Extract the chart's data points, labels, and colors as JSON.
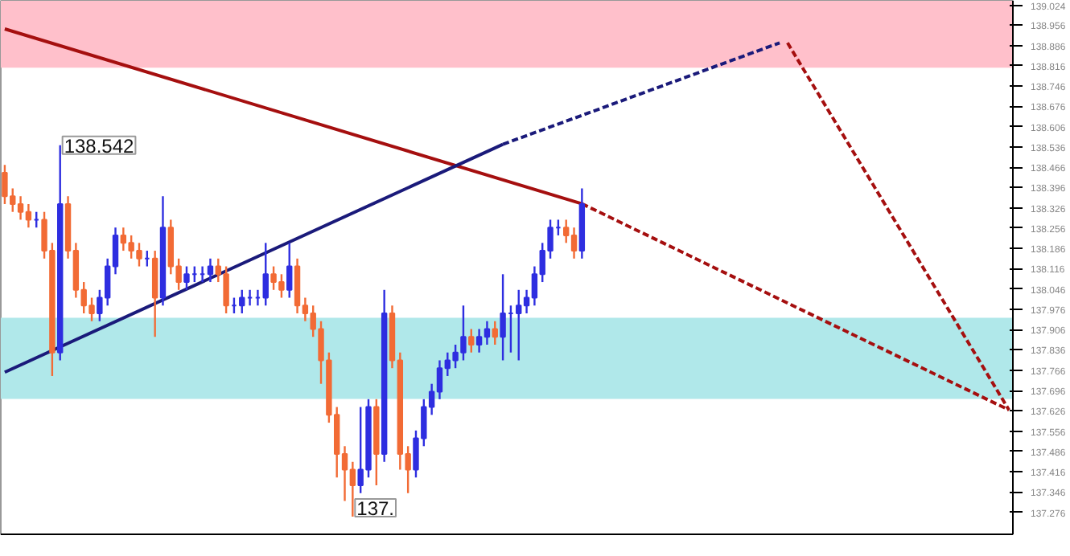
{
  "chart_data": {
    "type": "candlestick",
    "categories": [
      null,
      null,
      null,
      null,
      null,
      null,
      null,
      null,
      null,
      null,
      null,
      null,
      null,
      null,
      null,
      null,
      null,
      null,
      null,
      null,
      null,
      null,
      null,
      null,
      null,
      null,
      null,
      null,
      null,
      null,
      null,
      null,
      null,
      null,
      null,
      null,
      null,
      null,
      null,
      null,
      null,
      null,
      null,
      null,
      null,
      null,
      null,
      null,
      null,
      null,
      null,
      null,
      null,
      null,
      null,
      null,
      null,
      null,
      null,
      null,
      null,
      null,
      null,
      null,
      null,
      null,
      null,
      null,
      null,
      null,
      null,
      null,
      null,
      null,
      null,
      null,
      null,
      null,
      null,
      null,
      null,
      null,
      null,
      null,
      null,
      null,
      null,
      null,
      null,
      null,
      null,
      null,
      null,
      null,
      null,
      null,
      null,
      null,
      null,
      null,
      null,
      null,
      null,
      null,
      null,
      null,
      null,
      null,
      null,
      null,
      null,
      null,
      null,
      null,
      null,
      null,
      null,
      null,
      null,
      null,
      null,
      null,
      null,
      null,
      null,
      null,
      null,
      null
    ],
    "ohlc": [
      [
        138.447,
        138.474,
        138.339,
        138.366
      ],
      [
        138.366,
        138.393,
        138.312,
        138.339
      ],
      [
        138.339,
        138.366,
        138.285,
        138.312
      ],
      [
        138.312,
        138.339,
        138.258,
        138.285
      ],
      [
        138.285,
        138.312,
        138.258,
        138.285
      ],
      [
        138.285,
        138.312,
        138.151,
        138.178
      ],
      [
        138.178,
        138.205,
        137.746,
        137.827
      ],
      [
        137.827,
        138.542,
        137.8,
        138.339
      ],
      [
        138.339,
        138.366,
        138.151,
        138.178
      ],
      [
        138.178,
        138.205,
        138.016,
        138.043
      ],
      [
        138.043,
        138.07,
        137.962,
        137.989
      ],
      [
        137.989,
        138.016,
        137.935,
        137.962
      ],
      [
        137.962,
        138.043,
        137.935,
        138.016
      ],
      [
        138.016,
        138.151,
        137.989,
        138.124
      ],
      [
        138.124,
        138.258,
        138.097,
        138.231
      ],
      [
        138.231,
        138.258,
        138.178,
        138.205
      ],
      [
        138.205,
        138.231,
        138.151,
        138.178
      ],
      [
        138.178,
        138.205,
        138.124,
        138.151
      ],
      [
        138.151,
        138.178,
        138.124,
        138.151
      ],
      [
        138.151,
        138.178,
        137.881,
        138.016
      ],
      [
        138.016,
        138.366,
        137.989,
        138.258
      ],
      [
        138.258,
        138.285,
        138.097,
        138.124
      ],
      [
        138.124,
        138.151,
        138.043,
        138.07
      ],
      [
        138.07,
        138.124,
        138.043,
        138.097
      ],
      [
        138.097,
        138.124,
        138.07,
        138.097
      ],
      [
        138.097,
        138.124,
        138.07,
        138.097
      ],
      [
        138.097,
        138.151,
        138.07,
        138.124
      ],
      [
        138.124,
        138.151,
        138.07,
        138.097
      ],
      [
        138.097,
        138.124,
        137.962,
        137.989
      ],
      [
        137.989,
        138.016,
        137.962,
        137.989
      ],
      [
        137.989,
        138.043,
        137.962,
        138.016
      ],
      [
        138.016,
        138.043,
        137.989,
        138.016
      ],
      [
        138.016,
        138.043,
        137.989,
        138.016
      ],
      [
        138.016,
        138.205,
        137.989,
        138.097
      ],
      [
        138.097,
        138.124,
        138.043,
        138.07
      ],
      [
        138.07,
        138.097,
        138.016,
        138.043
      ],
      [
        138.043,
        138.205,
        138.016,
        138.124
      ],
      [
        138.124,
        138.151,
        137.962,
        137.989
      ],
      [
        137.989,
        138.016,
        137.935,
        137.962
      ],
      [
        137.962,
        137.989,
        137.881,
        137.908
      ],
      [
        137.908,
        137.935,
        137.719,
        137.8
      ],
      [
        137.8,
        137.827,
        137.585,
        137.612
      ],
      [
        137.612,
        137.639,
        137.396,
        137.477
      ],
      [
        137.477,
        137.504,
        137.315,
        137.423
      ],
      [
        137.423,
        137.45,
        137.261,
        137.369
      ],
      [
        137.369,
        137.639,
        137.342,
        137.423
      ],
      [
        137.423,
        137.666,
        137.396,
        137.639
      ],
      [
        137.639,
        137.666,
        137.369,
        137.477
      ],
      [
        137.477,
        138.043,
        137.45,
        137.962
      ],
      [
        137.962,
        137.989,
        137.773,
        137.8
      ],
      [
        137.8,
        137.827,
        137.423,
        137.477
      ],
      [
        137.477,
        137.504,
        137.342,
        137.423
      ],
      [
        137.423,
        137.558,
        137.396,
        137.531
      ],
      [
        137.531,
        137.666,
        137.504,
        137.639
      ],
      [
        137.639,
        137.719,
        137.612,
        137.692
      ],
      [
        137.692,
        137.8,
        137.666,
        137.773
      ],
      [
        137.773,
        137.827,
        137.746,
        137.8
      ],
      [
        137.8,
        137.854,
        137.773,
        137.827
      ],
      [
        137.827,
        137.989,
        137.8,
        137.881
      ],
      [
        137.881,
        137.908,
        137.827,
        137.854
      ],
      [
        137.854,
        137.908,
        137.827,
        137.881
      ],
      [
        137.881,
        137.935,
        137.854,
        137.908
      ],
      [
        137.908,
        137.935,
        137.854,
        137.881
      ],
      [
        137.881,
        138.097,
        137.8,
        137.962
      ],
      [
        137.962,
        137.989,
        137.827,
        137.962
      ],
      [
        137.962,
        138.043,
        137.8,
        137.989
      ],
      [
        137.989,
        138.043,
        137.962,
        138.016
      ],
      [
        138.016,
        138.124,
        137.989,
        138.097
      ],
      [
        138.097,
        138.205,
        138.07,
        138.178
      ],
      [
        138.178,
        138.285,
        138.151,
        138.258
      ],
      [
        138.258,
        138.285,
        138.231,
        138.258
      ],
      [
        138.258,
        138.285,
        138.205,
        138.231
      ],
      [
        138.231,
        138.258,
        138.151,
        138.178
      ],
      [
        138.178,
        138.393,
        138.151,
        138.339
      ],
      null,
      null,
      null,
      null,
      null,
      null,
      null,
      null,
      null,
      null,
      null,
      null,
      null,
      null,
      null,
      null,
      null,
      null,
      null,
      null,
      null,
      null,
      null,
      null,
      null,
      null,
      null,
      null,
      null,
      null,
      null,
      null,
      null,
      null,
      null,
      null,
      null,
      null,
      null,
      null,
      null,
      null,
      null,
      null,
      null,
      null,
      null,
      null,
      null,
      null,
      null,
      null,
      null,
      null
    ],
    "colors": [
      "#f26b35",
      "#f26b35",
      "#f26b35",
      "#f26b35",
      "#2e2ee0",
      "#f26b35",
      "#f26b35",
      "#2e2ee0",
      "#f26b35",
      "#f26b35",
      "#f26b35",
      "#f26b35",
      "#2e2ee0",
      "#2e2ee0",
      "#2e2ee0",
      "#f26b35",
      "#f26b35",
      "#f26b35",
      "#2e2ee0",
      "#f26b35",
      "#2e2ee0",
      "#f26b35",
      "#f26b35",
      "#2e2ee0",
      "#2e2ee0",
      "#2e2ee0",
      "#2e2ee0",
      "#f26b35",
      "#f26b35",
      "#2e2ee0",
      "#2e2ee0",
      "#2e2ee0",
      "#2e2ee0",
      "#2e2ee0",
      "#f26b35",
      "#f26b35",
      "#2e2ee0",
      "#f26b35",
      "#f26b35",
      "#f26b35",
      "#f26b35",
      "#f26b35",
      "#f26b35",
      "#f26b35",
      "#f26b35",
      "#2e2ee0",
      "#2e2ee0",
      "#f26b35",
      "#2e2ee0",
      "#f26b35",
      "#f26b35",
      "#f26b35",
      "#2e2ee0",
      "#2e2ee0",
      "#2e2ee0",
      "#2e2ee0",
      "#2e2ee0",
      "#2e2ee0",
      "#2e2ee0",
      "#f26b35",
      "#2e2ee0",
      "#2e2ee0",
      "#f26b35",
      "#2e2ee0",
      "#2e2ee0",
      "#2e2ee0",
      "#2e2ee0",
      "#2e2ee0",
      "#2e2ee0",
      "#2e2ee0",
      "#2e2ee0",
      "#f26b35",
      "#f26b35",
      "#2e2ee0",
      null,
      null,
      null,
      null,
      null,
      null,
      null,
      null,
      null,
      null,
      null,
      null,
      null,
      null,
      null,
      null,
      null,
      null,
      null,
      null,
      null,
      null,
      null,
      null,
      null,
      null,
      null,
      null,
      null,
      null,
      null,
      null,
      null,
      null,
      null,
      null,
      null,
      null,
      null,
      null,
      null,
      null,
      null,
      null,
      null,
      null,
      null,
      null,
      null,
      null,
      null,
      null,
      null,
      null
    ],
    "series": [
      {
        "type": "line",
        "values": [
          138.943,
          null,
          null,
          null,
          null,
          null,
          null,
          null,
          null,
          null,
          null,
          null,
          null,
          null,
          null,
          null,
          null,
          null,
          null,
          null,
          null,
          null,
          null,
          null,
          null,
          null,
          null,
          null,
          null,
          null,
          null,
          null,
          null,
          null,
          null,
          null,
          null,
          null,
          null,
          null,
          null,
          null,
          null,
          null,
          null,
          null,
          null,
          null,
          null,
          null,
          null,
          null,
          null,
          null,
          null,
          null,
          null,
          null,
          null,
          null,
          null,
          null,
          null,
          null,
          null,
          null,
          null,
          null,
          null,
          null,
          null,
          null,
          null,
          138.34,
          null,
          null,
          null,
          null,
          null,
          null,
          null,
          null,
          null,
          null,
          null,
          null,
          null,
          null,
          null,
          null,
          null,
          null,
          null,
          null,
          null,
          null,
          null,
          null,
          null,
          null,
          null,
          null,
          null,
          null,
          null,
          null,
          null,
          null,
          null,
          null,
          null,
          null,
          null,
          null,
          null,
          null,
          null,
          null,
          null,
          null,
          null,
          null,
          null,
          null,
          null,
          null,
          null,
          null
        ],
        "color": "#a50f0f",
        "line_style": "solid"
      },
      {
        "type": "line",
        "values": [
          null,
          null,
          null,
          null,
          null,
          null,
          null,
          null,
          null,
          null,
          null,
          null,
          null,
          null,
          null,
          null,
          null,
          null,
          null,
          null,
          null,
          null,
          null,
          null,
          null,
          null,
          null,
          null,
          null,
          null,
          null,
          null,
          null,
          null,
          null,
          null,
          null,
          null,
          null,
          null,
          null,
          null,
          null,
          null,
          null,
          null,
          null,
          null,
          null,
          null,
          null,
          null,
          null,
          null,
          null,
          null,
          null,
          null,
          null,
          null,
          null,
          null,
          null,
          null,
          null,
          null,
          null,
          null,
          null,
          null,
          null,
          null,
          null,
          138.34,
          null,
          null,
          null,
          null,
          null,
          null,
          null,
          null,
          null,
          null,
          null,
          null,
          null,
          null,
          null,
          null,
          null,
          null,
          null,
          null,
          null,
          null,
          null,
          null,
          null,
          null,
          null,
          null,
          null,
          null,
          null,
          null,
          null,
          null,
          null,
          null,
          null,
          null,
          null,
          null,
          null,
          null,
          null,
          null,
          null,
          null,
          null,
          null,
          null,
          null,
          null,
          null,
          null,
          137.629
        ],
        "color": "#a50f0f",
        "line_style": "dashed"
      },
      {
        "type": "line",
        "values": [
          137.759,
          null,
          null,
          null,
          null,
          null,
          null,
          null,
          null,
          null,
          null,
          null,
          null,
          null,
          null,
          null,
          null,
          null,
          null,
          null,
          null,
          null,
          null,
          null,
          null,
          null,
          null,
          null,
          null,
          null,
          null,
          null,
          null,
          null,
          null,
          null,
          null,
          null,
          null,
          null,
          null,
          null,
          null,
          null,
          null,
          null,
          null,
          null,
          null,
          null,
          null,
          null,
          null,
          null,
          null,
          null,
          null,
          null,
          null,
          null,
          null,
          null,
          null,
          138.545,
          null,
          null,
          null,
          null,
          null,
          null,
          null,
          null,
          null,
          null,
          null,
          null,
          null,
          null,
          null,
          null,
          null,
          null,
          null,
          null,
          null,
          null,
          null,
          null,
          null,
          null,
          null,
          null,
          null,
          null,
          null,
          null,
          null,
          null,
          null,
          null,
          null,
          null,
          null,
          null,
          null,
          null,
          null,
          null,
          null,
          null,
          null,
          null,
          null,
          null,
          null,
          null,
          null,
          null,
          null,
          null,
          null,
          null,
          null,
          null,
          null,
          null,
          null,
          null
        ],
        "color": "#1a1a7a",
        "line_style": "solid"
      },
      {
        "type": "line",
        "values": [
          null,
          null,
          null,
          null,
          null,
          null,
          null,
          null,
          null,
          null,
          null,
          null,
          null,
          null,
          null,
          null,
          null,
          null,
          null,
          null,
          null,
          null,
          null,
          null,
          null,
          null,
          null,
          null,
          null,
          null,
          null,
          null,
          null,
          null,
          null,
          null,
          null,
          null,
          null,
          null,
          null,
          null,
          null,
          null,
          null,
          null,
          null,
          null,
          null,
          null,
          null,
          null,
          null,
          null,
          null,
          null,
          null,
          null,
          null,
          null,
          null,
          null,
          null,
          138.545,
          null,
          null,
          null,
          null,
          null,
          null,
          null,
          null,
          null,
          null,
          null,
          null,
          null,
          null,
          null,
          null,
          null,
          null,
          null,
          null,
          null,
          null,
          null,
          null,
          null,
          null,
          null,
          null,
          null,
          null,
          null,
          null,
          null,
          null,
          138.895,
          null,
          null,
          null,
          null,
          null,
          null,
          null,
          null,
          null,
          null,
          null,
          null,
          null,
          null,
          null,
          null,
          null,
          null,
          null,
          null,
          null,
          null,
          null,
          null,
          null,
          null,
          null,
          null,
          null
        ],
        "color": "#1a1a7a",
        "line_style": "dashed"
      },
      {
        "type": "line",
        "values": [
          null,
          null,
          null,
          null,
          null,
          null,
          null,
          null,
          null,
          null,
          null,
          null,
          null,
          null,
          null,
          null,
          null,
          null,
          null,
          null,
          null,
          null,
          null,
          null,
          null,
          null,
          null,
          null,
          null,
          null,
          null,
          null,
          null,
          null,
          null,
          null,
          null,
          null,
          null,
          null,
          null,
          null,
          null,
          null,
          null,
          null,
          null,
          null,
          null,
          null,
          null,
          null,
          null,
          null,
          null,
          null,
          null,
          null,
          null,
          null,
          null,
          null,
          null,
          null,
          null,
          null,
          null,
          null,
          null,
          null,
          null,
          null,
          null,
          null,
          null,
          null,
          null,
          null,
          null,
          null,
          null,
          null,
          null,
          null,
          null,
          null,
          null,
          null,
          null,
          null,
          null,
          null,
          null,
          null,
          null,
          null,
          null,
          null,
          null,
          138.895,
          null,
          null,
          null,
          null,
          null,
          null,
          null,
          null,
          null,
          null,
          null,
          null,
          null,
          null,
          null,
          null,
          null,
          null,
          null,
          null,
          null,
          null,
          null,
          null,
          null,
          null,
          null,
          137.629
        ],
        "color": "#a50f0f",
        "line_style": "dashed"
      }
    ],
    "bands": [
      {
        "axis": "y",
        "from": 138.809,
        "to": 139.04,
        "color": "#ffc0cb"
      },
      {
        "axis": "y",
        "from": 137.667,
        "to": 137.947,
        "color": "#b0e8ea"
      }
    ],
    "annotations": [
      "138.542",
      "137."
    ],
    "ylim": [
      137.2,
      139.04
    ],
    "yticks": [
      139.024,
      138.956,
      138.886,
      138.816,
      138.746,
      138.676,
      138.606,
      138.536,
      138.466,
      138.396,
      138.326,
      138.256,
      138.186,
      138.116,
      138.046,
      137.976,
      137.906,
      137.836,
      137.766,
      137.696,
      137.626,
      137.556,
      137.486,
      137.416,
      137.346,
      137.276
    ],
    "tick_labels": "y",
    "grid": false
  }
}
